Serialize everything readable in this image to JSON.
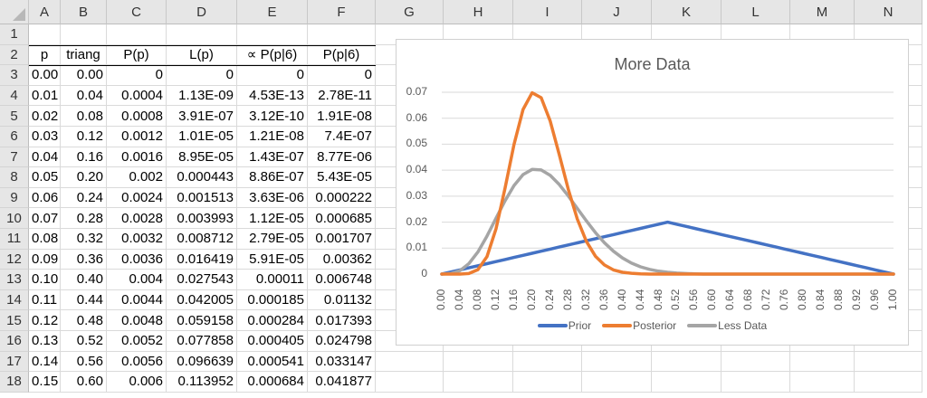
{
  "columns": [
    "A",
    "B",
    "C",
    "D",
    "E",
    "F",
    "G",
    "H",
    "I",
    "J",
    "K",
    "L",
    "M",
    "N"
  ],
  "rows": [
    1,
    2,
    3,
    4,
    5,
    6,
    7,
    8,
    9,
    10,
    11,
    12,
    13,
    14,
    15,
    16,
    17,
    18
  ],
  "table": {
    "headers": [
      "p",
      "triang",
      "P(p)",
      "L(p)",
      "∝ P(p|6)",
      "P(p|6)"
    ],
    "data": [
      [
        "0.00",
        "0.00",
        "0",
        "0",
        "0",
        "0"
      ],
      [
        "0.01",
        "0.04",
        "0.0004",
        "1.13E-09",
        "4.53E-13",
        "2.78E-11"
      ],
      [
        "0.02",
        "0.08",
        "0.0008",
        "3.91E-07",
        "3.12E-10",
        "1.91E-08"
      ],
      [
        "0.03",
        "0.12",
        "0.0012",
        "1.01E-05",
        "1.21E-08",
        "7.4E-07"
      ],
      [
        "0.04",
        "0.16",
        "0.0016",
        "8.95E-05",
        "1.43E-07",
        "8.77E-06"
      ],
      [
        "0.05",
        "0.20",
        "0.002",
        "0.000443",
        "8.86E-07",
        "5.43E-05"
      ],
      [
        "0.06",
        "0.24",
        "0.0024",
        "0.001513",
        "3.63E-06",
        "0.000222"
      ],
      [
        "0.07",
        "0.28",
        "0.0028",
        "0.003993",
        "1.12E-05",
        "0.000685"
      ],
      [
        "0.08",
        "0.32",
        "0.0032",
        "0.008712",
        "2.79E-05",
        "0.001707"
      ],
      [
        "0.09",
        "0.36",
        "0.0036",
        "0.016419",
        "5.91E-05",
        "0.00362"
      ],
      [
        "0.10",
        "0.40",
        "0.004",
        "0.027543",
        "0.00011",
        "0.006748"
      ],
      [
        "0.11",
        "0.44",
        "0.0044",
        "0.042005",
        "0.000185",
        "0.01132"
      ],
      [
        "0.12",
        "0.48",
        "0.0048",
        "0.059158",
        "0.000284",
        "0.017393"
      ],
      [
        "0.13",
        "0.52",
        "0.0052",
        "0.077858",
        "0.000405",
        "0.024798"
      ],
      [
        "0.14",
        "0.56",
        "0.0056",
        "0.096639",
        "0.000541",
        "0.033147"
      ],
      [
        "0.15",
        "0.60",
        "0.006",
        "0.113952",
        "0.000684",
        "0.041877"
      ]
    ]
  },
  "chart": {
    "title": "More Data",
    "colors": {
      "prior": "#4472C4",
      "posterior": "#ED7D31",
      "less_data": "#A5A5A5",
      "grid": "#d9d9d9",
      "text": "#595959"
    }
  },
  "chart_data": {
    "type": "line",
    "title": "More Data",
    "xlabel": "",
    "ylabel": "",
    "ylim": [
      0,
      0.07
    ],
    "yticks": [
      "0",
      "0.01",
      "0.02",
      "0.03",
      "0.04",
      "0.05",
      "0.06",
      "0.07"
    ],
    "xticks": [
      "0.00",
      "0.04",
      "0.08",
      "0.12",
      "0.16",
      "0.20",
      "0.24",
      "0.28",
      "0.32",
      "0.36",
      "0.40",
      "0.44",
      "0.48",
      "0.52",
      "0.56",
      "0.60",
      "0.64",
      "0.68",
      "0.72",
      "0.76",
      "0.80",
      "0.84",
      "0.88",
      "0.92",
      "0.96",
      "1.00"
    ],
    "grid": true,
    "legend_position": "bottom",
    "x": [
      0,
      0.02,
      0.04,
      0.06,
      0.08,
      0.1,
      0.12,
      0.14,
      0.16,
      0.18,
      0.2,
      0.22,
      0.24,
      0.26,
      0.28,
      0.3,
      0.32,
      0.34,
      0.36,
      0.38,
      0.4,
      0.42,
      0.44,
      0.46,
      0.48,
      0.5,
      0.52,
      0.54,
      0.56,
      0.58,
      0.6,
      0.62,
      0.64,
      0.66,
      0.68,
      0.7,
      0.72,
      0.74,
      0.76,
      0.78,
      0.8,
      0.82,
      0.84,
      0.86,
      0.88,
      0.9,
      0.92,
      0.94,
      0.96,
      0.98,
      1.0
    ],
    "series": [
      {
        "name": "Prior",
        "values": [
          0,
          0.0008,
          0.0016,
          0.0024,
          0.0032,
          0.004,
          0.0048,
          0.0056,
          0.0064,
          0.0072,
          0.008,
          0.0088,
          0.0096,
          0.0104,
          0.0112,
          0.012,
          0.0128,
          0.0136,
          0.0144,
          0.0152,
          0.016,
          0.0168,
          0.0176,
          0.0184,
          0.0192,
          0.02,
          0.0192,
          0.0184,
          0.0176,
          0.0168,
          0.016,
          0.0152,
          0.0144,
          0.0136,
          0.0128,
          0.012,
          0.0112,
          0.0104,
          0.0096,
          0.0088,
          0.008,
          0.0072,
          0.0064,
          0.0056,
          0.0048,
          0.004,
          0.0032,
          0.0024,
          0.0016,
          0.0008,
          0
        ]
      },
      {
        "name": "Posterior",
        "values": [
          0,
          0,
          1e-05,
          0.0002,
          0.0017,
          0.0067,
          0.0174,
          0.0331,
          0.0499,
          0.0634,
          0.0698,
          0.0679,
          0.0589,
          0.0461,
          0.0327,
          0.0212,
          0.0126,
          0.0069,
          0.0035,
          0.0016,
          0.0007,
          0.0003,
          0.0001,
          0,
          0,
          0,
          0,
          0,
          0,
          0,
          0,
          0,
          0,
          0,
          0,
          0,
          0,
          0,
          0,
          0,
          0,
          0,
          0,
          0,
          0,
          0,
          0,
          0,
          0,
          0,
          0
        ]
      },
      {
        "name": "Less Data",
        "values": [
          0,
          0.0002,
          0.0013,
          0.004,
          0.0085,
          0.0146,
          0.0215,
          0.0282,
          0.0341,
          0.0383,
          0.0403,
          0.0401,
          0.038,
          0.0345,
          0.0301,
          0.0253,
          0.0205,
          0.016,
          0.0121,
          0.0088,
          0.0062,
          0.0042,
          0.0028,
          0.0018,
          0.0011,
          0.0007,
          0.0004,
          0.0002,
          0.0001,
          0,
          0,
          0,
          0,
          0,
          0,
          0,
          0,
          0,
          0,
          0,
          0,
          0,
          0,
          0,
          0,
          0,
          0,
          0,
          0,
          0,
          0
        ]
      }
    ]
  }
}
